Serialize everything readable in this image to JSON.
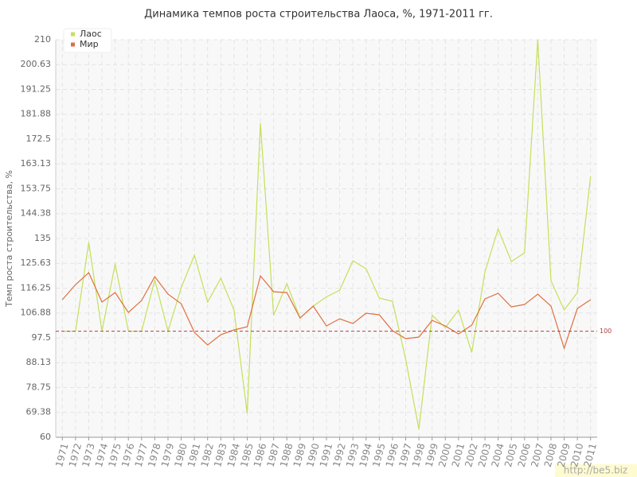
{
  "chart_data": {
    "type": "line",
    "title": "Динамика темпов роста строительства Лаоса, %, 1971-2011 гг.",
    "y_label": "Темп роста строительства, %",
    "categories": [
      "1971",
      "1972",
      "1973",
      "1974",
      "1975",
      "1976",
      "1977",
      "1978",
      "1979",
      "1980",
      "1981",
      "1982",
      "1983",
      "1984",
      "1985",
      "1986",
      "1987",
      "1988",
      "1989",
      "1990",
      "1991",
      "1992",
      "1993",
      "1994",
      "1995",
      "1996",
      "1997",
      "1998",
      "1999",
      "2000",
      "2001",
      "2002",
      "2003",
      "2004",
      "2005",
      "2006",
      "2007",
      "2008",
      "2009",
      "2010",
      "2011"
    ],
    "series": [
      {
        "name": "Лаос",
        "color": "#c4e05a",
        "values": [
          100,
          100,
          133.5,
          100,
          125.4,
          100,
          100,
          119.4,
          100,
          116.4,
          128.7,
          111,
          120,
          108,
          69,
          178.5,
          106,
          118,
          105,
          109.5,
          113,
          115.5,
          126.6,
          123.6,
          112.5,
          111.3,
          89.4,
          63,
          106,
          101.4,
          108,
          92,
          122.4,
          138.6,
          126.3,
          129.6,
          210,
          119.1,
          108,
          114.6,
          158.4
        ]
      },
      {
        "name": "Мир",
        "color": "#e07040",
        "values": [
          111.9,
          117.6,
          122.1,
          111,
          114.6,
          107.1,
          111.6,
          120.6,
          114,
          110.4,
          99.6,
          94.8,
          98.7,
          100.5,
          101.7,
          120.9,
          114.9,
          114.6,
          105,
          109.5,
          102,
          104.7,
          102.9,
          106.8,
          106.2,
          100.2,
          97.2,
          97.8,
          104.1,
          102,
          99,
          102.3,
          112.2,
          114.3,
          109.2,
          110.1,
          114,
          109.5,
          93.6,
          108.6,
          111.9
        ]
      }
    ],
    "ylim": [
      60,
      210
    ],
    "yticks": [
      60,
      69.38,
      78.75,
      88.13,
      97.5,
      106.88,
      116.25,
      125.63,
      135,
      144.38,
      153.75,
      163.13,
      172.5,
      181.88,
      191.25,
      200.63,
      210
    ],
    "grid": true,
    "legend": "top-left",
    "reference_line": {
      "value": 100,
      "color": "#b04040"
    },
    "watermark": "http://be5.biz"
  }
}
